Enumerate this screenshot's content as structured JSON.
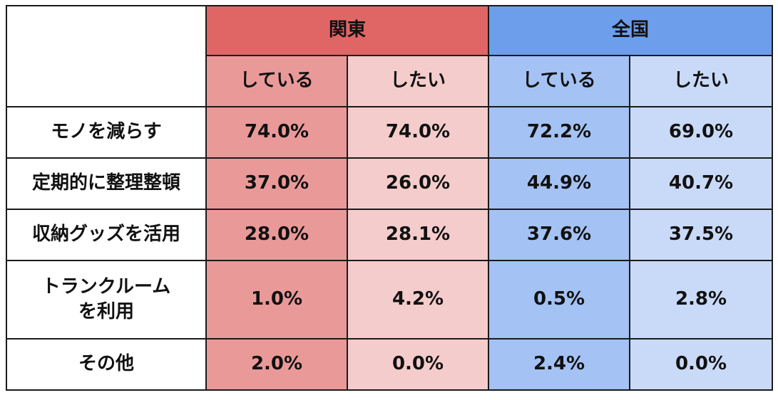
{
  "chart_data": {
    "type": "table",
    "regions": [
      "関東",
      "全国"
    ],
    "subheaders": [
      "している",
      "したい"
    ],
    "columns": [
      "関東 している",
      "関東 したい",
      "全国 している",
      "全国 したい"
    ],
    "rows": [
      {
        "label": "モノを減らす",
        "values": [
          "74.0%",
          "74.0%",
          "72.2%",
          "69.0%"
        ]
      },
      {
        "label": "定期的に整理整頓",
        "values": [
          "37.0%",
          "26.0%",
          "44.9%",
          "40.7%"
        ]
      },
      {
        "label": "収納グッズを活用",
        "values": [
          "28.0%",
          "28.1%",
          "37.6%",
          "37.5%"
        ]
      },
      {
        "label_lines": [
          "トランクルーム",
          "を利用"
        ],
        "values": [
          "1.0%",
          "4.2%",
          "0.5%",
          "2.8%"
        ]
      },
      {
        "label": "その他",
        "values": [
          "2.0%",
          "0.0%",
          "2.4%",
          "0.0%"
        ]
      }
    ],
    "colors": {
      "kanto_header": "#e06666",
      "kanto_doing": "#ea9999",
      "kanto_want": "#f4cccc",
      "zenkoku_header": "#6d9eeb",
      "zenkoku_doing": "#a4c2f4",
      "zenkoku_want": "#c9daf8"
    }
  }
}
